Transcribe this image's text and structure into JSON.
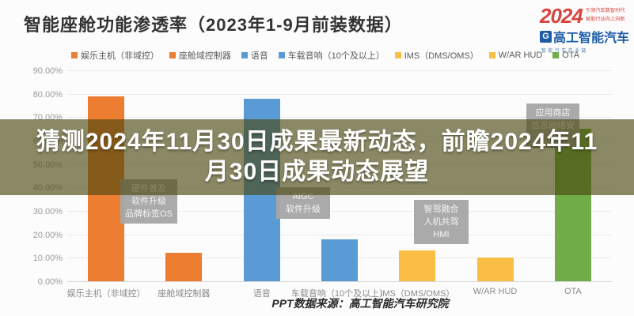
{
  "title": "智能座舱功能渗透率（2023年1-9月前装数据）",
  "logo": {
    "year": "2024",
    "tagline1": "引领汽车数智时代",
    "tagline2": "赋能行业向上向新",
    "brand_icon": "G",
    "brand": "高工智能汽车",
    "subtext": "智能汽车产业链",
    "red": "#d8453e",
    "blue": "#1d5ca5"
  },
  "overlay": {
    "line1": "猜测2024年11月30日成果最新动态，前瞻2024年11",
    "line2": "月30日成果动态展望"
  },
  "source": "PPT数据来源：高工智能汽车研究院",
  "chart_data": {
    "type": "bar",
    "title": "智能座舱功能渗透率（2023年1-9月前装数据）",
    "categories": [
      "娱乐主机（非域控）",
      "座舱域控制器",
      "语音",
      "车载音响（10个及以上）",
      "IMS（DMS/OMS）",
      "W/AR HUD",
      "OTA"
    ],
    "values": [
      79,
      12,
      78,
      18,
      13,
      10,
      65
    ],
    "unit": "%",
    "bar_colors": [
      "#ED7D31",
      "#ED7D31",
      "#5B9BD5",
      "#5B9BD5",
      "#FBBE45",
      "#FBBE45",
      "#70AD47"
    ],
    "ylim": [
      0,
      90
    ],
    "ytick_step": 10,
    "grid": true,
    "legend_position": "top",
    "annotations": [
      {
        "target": "座舱域控制器",
        "lines": [
          "硬件普及",
          "软件升级",
          "品牌标签OS"
        ]
      },
      {
        "target": "语音",
        "lines": [
          "AIGC",
          "软件升级"
        ]
      },
      {
        "target": "IMS（DMS/OMS）",
        "lines": [
          "智驾融合",
          "人机共驾",
          "HMI"
        ]
      },
      {
        "target": "OTA",
        "lines": [
          "应用商店",
          "信息网络安全"
        ]
      }
    ]
  }
}
